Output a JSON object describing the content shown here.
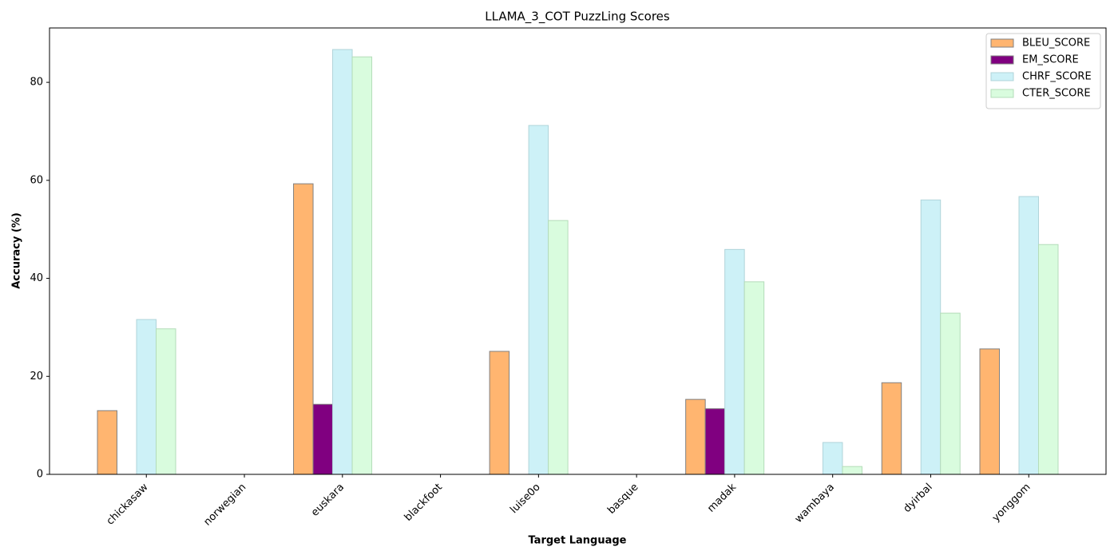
{
  "chart_data": {
    "type": "bar",
    "title": "LLAMA_3_COT PuzzLing Scores",
    "x_label": "Target Language",
    "y_label": "Accuracy (%)",
    "categories": [
      "chickasaw",
      "norwegian",
      "euskara",
      "blackfoot",
      "luise0o",
      "basque",
      "madak",
      "wambaya",
      "dyirbal",
      "yonggom"
    ],
    "series": [
      {
        "name": "BLEU_SCORE",
        "color": "#ffb570",
        "edge": "#808080",
        "values": [
          13.0,
          0,
          59.3,
          0,
          25.1,
          0,
          15.3,
          0,
          18.7,
          25.6
        ]
      },
      {
        "name": "EM_SCORE",
        "color": "#800080",
        "edge": "#808080",
        "values": [
          0,
          0,
          14.3,
          0,
          0,
          0,
          13.4,
          0,
          0,
          0
        ]
      },
      {
        "name": "CHRF_SCORE",
        "color": "#cdf1f7",
        "edge": "#b0d4da",
        "values": [
          31.6,
          0,
          86.7,
          0,
          71.2,
          0,
          45.9,
          6.5,
          56.0,
          56.7
        ]
      },
      {
        "name": "CTER_SCORE",
        "color": "#d9fcde",
        "edge": "#b4dcb9",
        "values": [
          29.7,
          0,
          85.2,
          0,
          51.8,
          0,
          39.3,
          1.6,
          32.9,
          46.9
        ]
      }
    ],
    "ylim": [
      0,
      91.1
    ],
    "yticks": [
      0,
      20,
      40,
      60,
      80
    ],
    "grid": false,
    "legend": "upper-right"
  }
}
